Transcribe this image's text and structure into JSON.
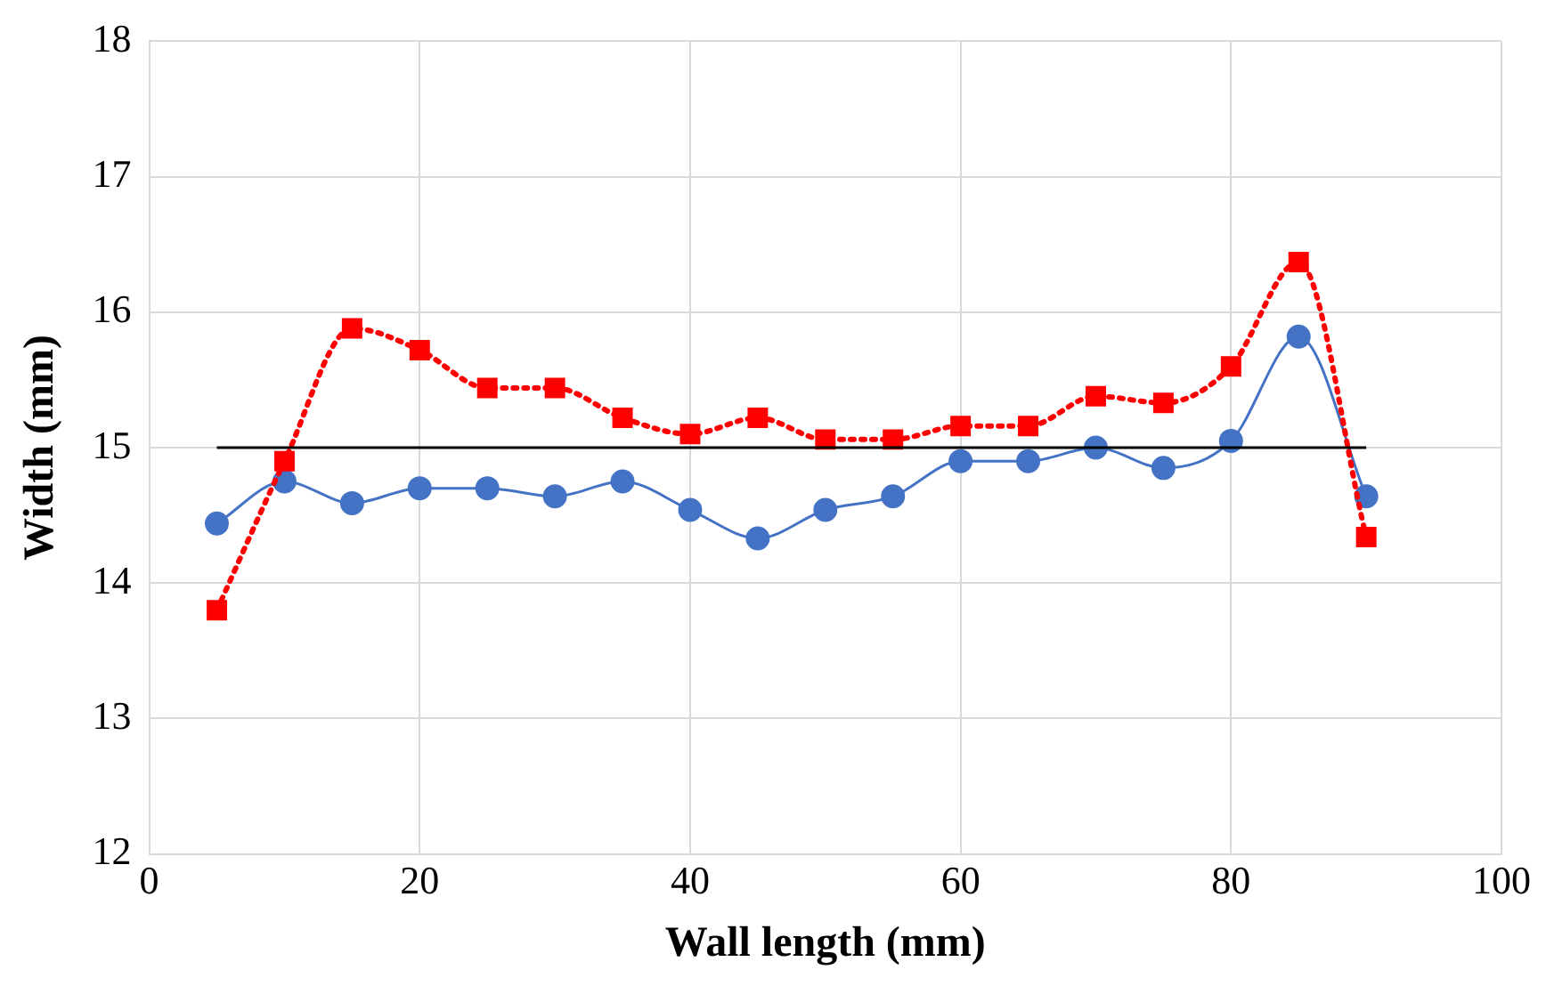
{
  "chart_data": {
    "type": "line",
    "xlabel": "Wall length (mm)",
    "ylabel": "Width (mm)",
    "x": [
      5,
      10,
      15,
      20,
      25,
      30,
      35,
      40,
      45,
      50,
      55,
      60,
      65,
      70,
      75,
      80,
      85,
      90
    ],
    "series": [
      {
        "color": "#ff0000",
        "marker": "square",
        "line_style": "dotted",
        "values": [
          13.8,
          14.9,
          15.88,
          15.72,
          15.44,
          15.44,
          15.22,
          15.1,
          15.22,
          15.06,
          15.06,
          15.16,
          15.16,
          15.38,
          15.33,
          15.6,
          16.37,
          14.34
        ]
      },
      {
        "color": "#4472c4",
        "marker": "circle",
        "line_style": "solid",
        "values": [
          14.44,
          14.75,
          14.59,
          14.7,
          14.7,
          14.64,
          14.75,
          14.54,
          14.33,
          14.54,
          14.64,
          14.9,
          14.9,
          15.0,
          14.85,
          15.05,
          15.82,
          14.64
        ]
      }
    ],
    "ref_lines": [
      {
        "axis": "y",
        "value": 15,
        "color": "#000000"
      }
    ],
    "xlim": [
      0,
      100
    ],
    "xticks": [
      0,
      20,
      40,
      60,
      80,
      100
    ],
    "ylim": [
      12,
      18
    ],
    "yticks": [
      12,
      13,
      14,
      15,
      16,
      17,
      18
    ],
    "grid": true,
    "legend": false
  }
}
